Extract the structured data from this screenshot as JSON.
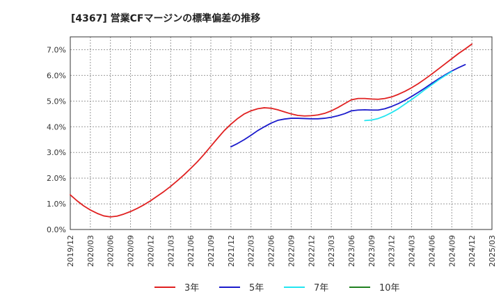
{
  "chart_data": {
    "type": "line",
    "title": "[4367]  営業CFマージンの標準偏差の推移",
    "xlabel": "",
    "ylabel": "",
    "ylim": [
      0,
      7.5
    ],
    "yticks": [
      0,
      1,
      2,
      3,
      4,
      5,
      6,
      7
    ],
    "ytick_labels": [
      "0.0%",
      "1.0%",
      "2.0%",
      "3.0%",
      "4.0%",
      "5.0%",
      "6.0%",
      "7.0%"
    ],
    "xtick_labels": [
      "2019/12",
      "2020/03",
      "2020/06",
      "2020/09",
      "2020/12",
      "2021/03",
      "2021/06",
      "2021/09",
      "2021/12",
      "2022/03",
      "2022/06",
      "2022/09",
      "2022/12",
      "2023/03",
      "2023/06",
      "2023/09",
      "2023/12",
      "2024/03",
      "2024/06",
      "2024/09",
      "2024/12",
      "2025/03"
    ],
    "grid": true,
    "legend_position": "bottom",
    "series": [
      {
        "name": "3年",
        "color": "#e02020",
        "points": [
          [
            "2019/12",
            1.35
          ],
          [
            "2020/01",
            1.12
          ],
          [
            "2020/02",
            0.92
          ],
          [
            "2020/03",
            0.76
          ],
          [
            "2020/04",
            0.63
          ],
          [
            "2020/05",
            0.53
          ],
          [
            "2020/06",
            0.49
          ],
          [
            "2020/07",
            0.52
          ],
          [
            "2020/08",
            0.6
          ],
          [
            "2020/09",
            0.7
          ],
          [
            "2020/10",
            0.82
          ],
          [
            "2020/11",
            0.96
          ],
          [
            "2020/12",
            1.12
          ],
          [
            "2021/01",
            1.3
          ],
          [
            "2021/02",
            1.48
          ],
          [
            "2021/03",
            1.68
          ],
          [
            "2021/04",
            1.9
          ],
          [
            "2021/05",
            2.13
          ],
          [
            "2021/06",
            2.38
          ],
          [
            "2021/07",
            2.64
          ],
          [
            "2021/08",
            2.93
          ],
          [
            "2021/09",
            3.24
          ],
          [
            "2021/10",
            3.55
          ],
          [
            "2021/11",
            3.85
          ],
          [
            "2021/12",
            4.1
          ],
          [
            "2022/01",
            4.32
          ],
          [
            "2022/02",
            4.5
          ],
          [
            "2022/03",
            4.62
          ],
          [
            "2022/04",
            4.7
          ],
          [
            "2022/05",
            4.74
          ],
          [
            "2022/06",
            4.72
          ],
          [
            "2022/07",
            4.66
          ],
          [
            "2022/08",
            4.58
          ],
          [
            "2022/09",
            4.5
          ],
          [
            "2022/10",
            4.44
          ],
          [
            "2022/11",
            4.42
          ],
          [
            "2022/12",
            4.43
          ],
          [
            "2023/01",
            4.46
          ],
          [
            "2023/02",
            4.52
          ],
          [
            "2023/03",
            4.62
          ],
          [
            "2023/04",
            4.75
          ],
          [
            "2023/05",
            4.9
          ],
          [
            "2023/06",
            5.05
          ],
          [
            "2023/07",
            5.1
          ],
          [
            "2023/08",
            5.1
          ],
          [
            "2023/09",
            5.08
          ],
          [
            "2023/10",
            5.07
          ],
          [
            "2023/11",
            5.1
          ],
          [
            "2023/12",
            5.16
          ],
          [
            "2024/01",
            5.26
          ],
          [
            "2024/02",
            5.38
          ],
          [
            "2024/03",
            5.52
          ],
          [
            "2024/04",
            5.68
          ],
          [
            "2024/05",
            5.86
          ],
          [
            "2024/06",
            6.05
          ],
          [
            "2024/07",
            6.25
          ],
          [
            "2024/08",
            6.45
          ],
          [
            "2024/09",
            6.65
          ],
          [
            "2024/10",
            6.85
          ],
          [
            "2024/11",
            7.03
          ],
          [
            "2024/12",
            7.22
          ]
        ]
      },
      {
        "name": "5年",
        "color": "#1a1acc",
        "points": [
          [
            "2021/12",
            3.22
          ],
          [
            "2022/01",
            3.35
          ],
          [
            "2022/02",
            3.5
          ],
          [
            "2022/03",
            3.67
          ],
          [
            "2022/04",
            3.85
          ],
          [
            "2022/05",
            4.0
          ],
          [
            "2022/06",
            4.14
          ],
          [
            "2022/07",
            4.25
          ],
          [
            "2022/08",
            4.3
          ],
          [
            "2022/09",
            4.33
          ],
          [
            "2022/10",
            4.33
          ],
          [
            "2022/11",
            4.32
          ],
          [
            "2022/12",
            4.31
          ],
          [
            "2023/01",
            4.31
          ],
          [
            "2023/02",
            4.33
          ],
          [
            "2023/03",
            4.37
          ],
          [
            "2023/04",
            4.43
          ],
          [
            "2023/05",
            4.51
          ],
          [
            "2023/06",
            4.62
          ],
          [
            "2023/07",
            4.65
          ],
          [
            "2023/08",
            4.66
          ],
          [
            "2023/09",
            4.65
          ],
          [
            "2023/10",
            4.65
          ],
          [
            "2023/11",
            4.7
          ],
          [
            "2023/12",
            4.79
          ],
          [
            "2024/01",
            4.9
          ],
          [
            "2024/02",
            5.03
          ],
          [
            "2024/03",
            5.18
          ],
          [
            "2024/04",
            5.34
          ],
          [
            "2024/05",
            5.51
          ],
          [
            "2024/06",
            5.69
          ],
          [
            "2024/07",
            5.86
          ],
          [
            "2024/08",
            6.02
          ],
          [
            "2024/09",
            6.17
          ],
          [
            "2024/10",
            6.3
          ],
          [
            "2024/11",
            6.42
          ]
        ]
      },
      {
        "name": "7年",
        "color": "#22e5f0",
        "points": [
          [
            "2023/08",
            4.24
          ],
          [
            "2023/09",
            4.26
          ],
          [
            "2023/10",
            4.32
          ],
          [
            "2023/11",
            4.42
          ],
          [
            "2023/12",
            4.55
          ],
          [
            "2024/01",
            4.7
          ],
          [
            "2024/02",
            4.88
          ],
          [
            "2024/03",
            5.06
          ],
          [
            "2024/04",
            5.25
          ],
          [
            "2024/05",
            5.45
          ],
          [
            "2024/06",
            5.63
          ],
          [
            "2024/07",
            5.82
          ],
          [
            "2024/08",
            5.99
          ],
          [
            "2024/09",
            6.15
          ]
        ]
      },
      {
        "name": "10年",
        "color": "#208020",
        "points": []
      }
    ]
  }
}
